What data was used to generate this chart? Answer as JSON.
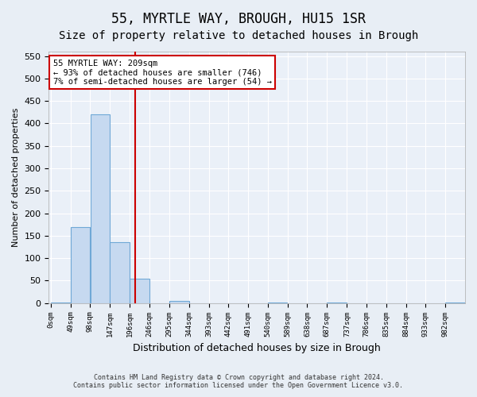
{
  "title": "55, MYRTLE WAY, BROUGH, HU15 1SR",
  "subtitle": "Size of property relative to detached houses in Brough",
  "xlabel": "Distribution of detached houses by size in Brough",
  "ylabel": "Number of detached properties",
  "footer_line1": "Contains HM Land Registry data © Crown copyright and database right 2024.",
  "footer_line2": "Contains public sector information licensed under the Open Government Licence v3.0.",
  "bin_edges": [
    0,
    49,
    98,
    147,
    196,
    246,
    295,
    344,
    393,
    442,
    491,
    540,
    589,
    638,
    687,
    737,
    786,
    835,
    884,
    933,
    982,
    1031
  ],
  "bin_labels": [
    "0sqm",
    "49sqm",
    "98sqm",
    "147sqm",
    "196sqm",
    "246sqm",
    "295sqm",
    "344sqm",
    "393sqm",
    "442sqm",
    "491sqm",
    "540sqm",
    "589sqm",
    "638sqm",
    "687sqm",
    "737sqm",
    "786sqm",
    "835sqm",
    "884sqm",
    "933sqm",
    "982sqm"
  ],
  "bar_heights": [
    1,
    170,
    420,
    135,
    55,
    0,
    5,
    0,
    0,
    0,
    0,
    1,
    0,
    0,
    1,
    0,
    0,
    0,
    0,
    0,
    1
  ],
  "bar_color": "#c6d9f0",
  "bar_edge_color": "#6fa8d6",
  "property_size": 209,
  "red_line_color": "#cc0000",
  "annotation_text": "55 MYRTLE WAY: 209sqm\n← 93% of detached houses are smaller (746)\n7% of semi-detached houses are larger (54) →",
  "annotation_box_color": "#cc0000",
  "ylim": [
    0,
    560
  ],
  "yticks": [
    0,
    50,
    100,
    150,
    200,
    250,
    300,
    350,
    400,
    450,
    500,
    550
  ],
  "bg_color": "#e8eef5",
  "plot_bg_color": "#eaf0f8",
  "grid_color": "#ffffff",
  "title_fontsize": 12,
  "subtitle_fontsize": 10
}
